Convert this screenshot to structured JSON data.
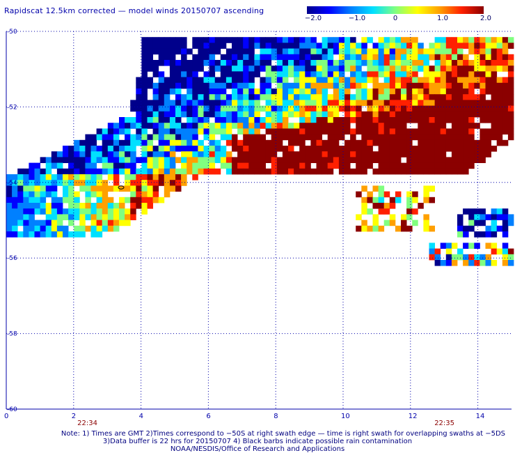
{
  "title": "Rapidscat 12.5km corrected — model winds 20150707 ascending",
  "colorbar": {
    "ticks": [
      "−2.0",
      "−1.0",
      "0",
      "1.0",
      "2.0"
    ],
    "range": [
      -2.0,
      2.0
    ],
    "colors": [
      "#00008b",
      "#0000ff",
      "#0080ff",
      "#00e0ff",
      "#80ff80",
      "#ffff00",
      "#ffa000",
      "#ff2000",
      "#8b0000"
    ]
  },
  "axes": {
    "x_ticks": [
      "0",
      "2",
      "4",
      "6",
      "8",
      "10",
      "12",
      "14"
    ],
    "y_ticks": [
      "-50",
      "-52",
      "-54",
      "-56",
      "-58",
      "-60"
    ],
    "x_range": [
      0,
      15
    ],
    "y_range": [
      -50,
      -60
    ]
  },
  "times": [
    {
      "label": "22:34",
      "x": 2.4
    },
    {
      "label": "22:35",
      "x": 13.0
    }
  ],
  "notes": {
    "line1": "Note: 1) Times are GMT 2)Times correspond to −50S at right swath edge — time is right swath for overlapping swaths at −5DS",
    "line2": "3)Data buffer is 22 hrs for 20150707 4) Black barbs indicate possible rain contamination",
    "line3": "NOAA/NESDIS/Office of Research and Applications"
  },
  "style": {
    "grid_color": "#0000aa",
    "label_color": "#0000aa",
    "time_color": "#8b0000"
  }
}
